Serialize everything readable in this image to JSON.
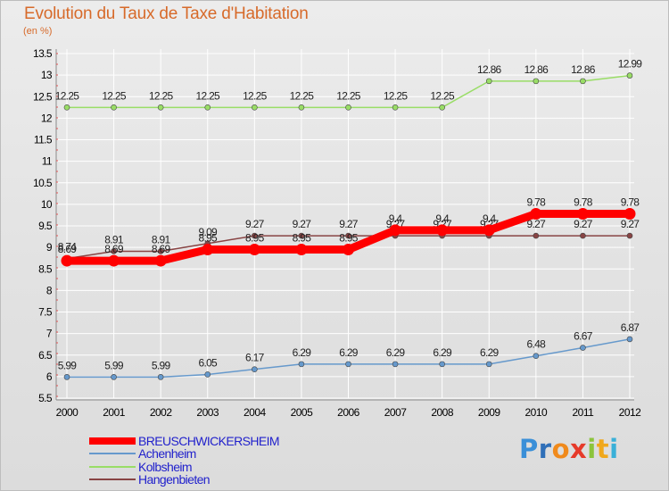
{
  "title": "Evolution du Taux de Taxe d'Habitation",
  "unit_label": "(en %)",
  "logo": {
    "text": "Proxiti",
    "letters": [
      "P",
      "r",
      "o",
      "x",
      "i",
      "t",
      "i"
    ]
  },
  "colors": {
    "title": "#d76a2a",
    "grid": "#ffffff",
    "axis_text": "#000000",
    "logo_letters": [
      "#3a8fd8",
      "#2f6fb8",
      "#f08a1c",
      "#e63a2a",
      "#8cc43c",
      "#f0a81c",
      "#3ab0d8"
    ]
  },
  "chart_data": {
    "type": "line",
    "title": "Evolution du Taux de Taxe d'Habitation",
    "xlabel": "",
    "ylabel": "(en %)",
    "categories": [
      "2000",
      "2001",
      "2002",
      "2003",
      "2004",
      "2005",
      "2006",
      "2007",
      "2008",
      "2009",
      "2010",
      "2011",
      "2012"
    ],
    "ylim": [
      5.5,
      13.5
    ],
    "yticks": [
      "5.5",
      "6",
      "6.5",
      "7",
      "7.5",
      "8",
      "8.5",
      "9",
      "9.5",
      "10",
      "10.5",
      "11",
      "11.5",
      "12",
      "12.5",
      "13",
      "13.5"
    ],
    "grid": true,
    "legend_position": "bottom-left",
    "series": [
      {
        "name": "Kolbsheim",
        "color": "#99dd66",
        "values": [
          12.25,
          12.25,
          12.25,
          12.25,
          12.25,
          12.25,
          12.25,
          12.25,
          12.25,
          12.86,
          12.86,
          12.86,
          12.99
        ],
        "labels": [
          "12.25",
          "12.25",
          "12.25",
          "12.25",
          "12.25",
          "12.25",
          "12.25",
          "12.25",
          "12.25",
          "12.86",
          "12.86",
          "12.86",
          "12.99"
        ]
      },
      {
        "name": "Achenheim",
        "color": "#6699cc",
        "values": [
          5.99,
          5.99,
          5.99,
          6.05,
          6.17,
          6.29,
          6.29,
          6.29,
          6.29,
          6.29,
          6.48,
          6.67,
          6.87
        ],
        "labels": [
          "5.99",
          "5.99",
          "5.99",
          "6.05",
          "6.17",
          "6.29",
          "6.29",
          "6.29",
          "6.29",
          "6.29",
          "6.48",
          "6.67",
          "6.87"
        ]
      },
      {
        "name": "Hangenbieten",
        "color": "#884444",
        "values": [
          8.74,
          8.91,
          8.91,
          9.09,
          9.27,
          9.27,
          9.27,
          9.27,
          9.27,
          9.27,
          9.27,
          9.27,
          9.27
        ],
        "labels": [
          "8.74",
          "8.91",
          "8.91",
          "9.09",
          "9.27",
          "9.27",
          "9.27",
          "9.27",
          "9.27",
          "9.27",
          "9.27",
          "9.27",
          "9.27"
        ]
      },
      {
        "name": "BREUSCHWICKERSHEIM",
        "color": "#ff0000",
        "values": [
          8.69,
          8.69,
          8.69,
          8.95,
          8.95,
          8.95,
          8.95,
          9.4,
          9.4,
          9.4,
          9.78,
          9.78,
          9.78
        ],
        "labels": [
          "8.69",
          "8.69",
          "8.69",
          "8.95",
          "8.95",
          "8.95",
          "8.95",
          "9.4",
          "9.4",
          "9.4",
          "9.78",
          "9.78",
          "9.78"
        ]
      }
    ],
    "legend": [
      "BREUSCHWICKERSHEIM",
      "Achenheim",
      "Kolbsheim",
      "Hangenbieten"
    ]
  }
}
